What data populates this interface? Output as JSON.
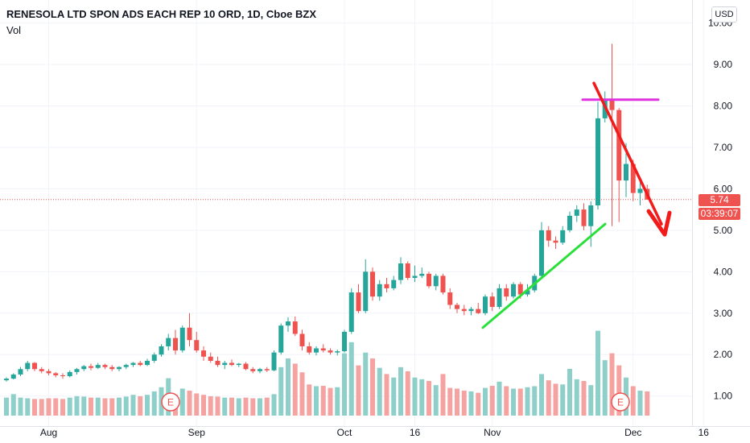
{
  "header": {
    "title": "RENESOLA LTD SPON ADS EACH REP 10 ORD, 1D, Cboe BZX",
    "volume_label": "Vol",
    "currency": "USD"
  },
  "price_tags": {
    "last_price": "5.74",
    "countdown": "03:39:07",
    "color": "#ef5350"
  },
  "chart_data": {
    "type": "candlestick",
    "y_ticks": [
      "1.00",
      "2.00",
      "3.00",
      "4.00",
      "5.00",
      "6.00",
      "7.00",
      "8.00",
      "9.00",
      "10.00"
    ],
    "ylim": [
      0.45,
      10.05
    ],
    "x_ticks": [
      {
        "label": "Aug",
        "index": 6
      },
      {
        "label": "Sep",
        "index": 27
      },
      {
        "label": "Oct",
        "index": 48
      },
      {
        "label": "16",
        "index": 58
      },
      {
        "label": "Nov",
        "index": 69
      },
      {
        "label": "Dec",
        "index": 89
      },
      {
        "label": "16",
        "index": 99
      }
    ],
    "colors": {
      "up": "#26a69a",
      "down": "#ef5350",
      "vol_up": "#8fcfc9",
      "vol_down": "#f5a3a1"
    },
    "candles": [
      [
        1.38,
        1.45,
        1.35,
        1.42
      ],
      [
        1.42,
        1.55,
        1.4,
        1.52
      ],
      [
        1.52,
        1.7,
        1.48,
        1.65
      ],
      [
        1.65,
        1.85,
        1.6,
        1.8
      ],
      [
        1.8,
        1.82,
        1.6,
        1.65
      ],
      [
        1.65,
        1.7,
        1.55,
        1.6
      ],
      [
        1.6,
        1.65,
        1.5,
        1.55
      ],
      [
        1.55,
        1.58,
        1.45,
        1.5
      ],
      [
        1.5,
        1.55,
        1.42,
        1.48
      ],
      [
        1.48,
        1.62,
        1.45,
        1.58
      ],
      [
        1.58,
        1.68,
        1.52,
        1.65
      ],
      [
        1.65,
        1.75,
        1.6,
        1.72
      ],
      [
        1.72,
        1.78,
        1.62,
        1.68
      ],
      [
        1.68,
        1.8,
        1.65,
        1.75
      ],
      [
        1.75,
        1.78,
        1.65,
        1.7
      ],
      [
        1.7,
        1.75,
        1.6,
        1.65
      ],
      [
        1.65,
        1.72,
        1.6,
        1.7
      ],
      [
        1.7,
        1.78,
        1.65,
        1.75
      ],
      [
        1.75,
        1.82,
        1.7,
        1.8
      ],
      [
        1.8,
        1.85,
        1.72,
        1.75
      ],
      [
        1.75,
        1.9,
        1.72,
        1.85
      ],
      [
        1.85,
        2.05,
        1.8,
        2.0
      ],
      [
        2.0,
        2.25,
        1.95,
        2.2
      ],
      [
        2.2,
        2.5,
        2.1,
        2.4
      ],
      [
        2.4,
        2.6,
        2.0,
        2.1
      ],
      [
        2.1,
        2.7,
        2.05,
        2.65
      ],
      [
        2.65,
        3.0,
        2.2,
        2.35
      ],
      [
        2.35,
        2.55,
        2.05,
        2.1
      ],
      [
        2.1,
        2.2,
        1.85,
        1.95
      ],
      [
        1.95,
        2.05,
        1.8,
        1.85
      ],
      [
        1.85,
        1.95,
        1.7,
        1.75
      ],
      [
        1.75,
        1.85,
        1.65,
        1.8
      ],
      [
        1.8,
        1.88,
        1.72,
        1.75
      ],
      [
        1.75,
        1.8,
        1.7,
        1.78
      ],
      [
        1.78,
        1.82,
        1.62,
        1.65
      ],
      [
        1.65,
        1.7,
        1.55,
        1.6
      ],
      [
        1.6,
        1.68,
        1.55,
        1.65
      ],
      [
        1.65,
        1.7,
        1.58,
        1.62
      ],
      [
        1.62,
        2.1,
        1.6,
        2.05
      ],
      [
        2.05,
        2.75,
        2.0,
        2.7
      ],
      [
        2.7,
        2.9,
        2.55,
        2.8
      ],
      [
        2.8,
        2.92,
        2.45,
        2.5
      ],
      [
        2.5,
        2.6,
        2.1,
        2.2
      ],
      [
        2.2,
        2.3,
        2.0,
        2.05
      ],
      [
        2.05,
        2.2,
        1.98,
        2.15
      ],
      [
        2.15,
        2.25,
        2.05,
        2.1
      ],
      [
        2.1,
        2.15,
        2.0,
        2.05
      ],
      [
        2.05,
        2.12,
        1.98,
        2.08
      ],
      [
        2.08,
        2.6,
        2.05,
        2.55
      ],
      [
        2.55,
        3.6,
        2.5,
        3.5
      ],
      [
        3.5,
        3.7,
        3.0,
        3.05
      ],
      [
        3.05,
        4.3,
        3.0,
        4.0
      ],
      [
        4.0,
        4.1,
        3.3,
        3.4
      ],
      [
        3.4,
        3.8,
        3.3,
        3.7
      ],
      [
        3.7,
        3.85,
        3.5,
        3.6
      ],
      [
        3.6,
        3.9,
        3.55,
        3.8
      ],
      [
        3.8,
        4.35,
        3.7,
        4.2
      ],
      [
        4.2,
        4.25,
        3.8,
        3.85
      ],
      [
        3.85,
        4.15,
        3.75,
        3.9
      ],
      [
        3.9,
        4.1,
        3.85,
        3.95
      ],
      [
        3.95,
        4.0,
        3.6,
        3.65
      ],
      [
        3.65,
        3.95,
        3.55,
        3.9
      ],
      [
        3.9,
        3.95,
        3.45,
        3.5
      ],
      [
        3.5,
        3.6,
        3.1,
        3.2
      ],
      [
        3.2,
        3.25,
        3.0,
        3.1
      ],
      [
        3.1,
        3.2,
        2.95,
        3.05
      ],
      [
        3.05,
        3.15,
        2.95,
        3.1
      ],
      [
        3.1,
        3.25,
        2.98,
        3.0
      ],
      [
        3.0,
        3.45,
        2.95,
        3.4
      ],
      [
        3.4,
        3.5,
        3.05,
        3.15
      ],
      [
        3.15,
        3.7,
        3.1,
        3.6
      ],
      [
        3.6,
        3.7,
        3.3,
        3.4
      ],
      [
        3.4,
        3.75,
        3.35,
        3.7
      ],
      [
        3.7,
        3.75,
        3.35,
        3.45
      ],
      [
        3.45,
        3.7,
        3.4,
        3.55
      ],
      [
        3.55,
        3.95,
        3.5,
        3.9
      ],
      [
        3.9,
        5.2,
        3.85,
        5.0
      ],
      [
        5.0,
        5.1,
        4.6,
        4.75
      ],
      [
        4.75,
        4.85,
        4.55,
        4.7
      ],
      [
        4.7,
        5.1,
        4.65,
        5.0
      ],
      [
        5.0,
        5.45,
        4.95,
        5.35
      ],
      [
        5.35,
        5.6,
        5.2,
        5.5
      ],
      [
        5.5,
        5.65,
        5.0,
        5.1
      ],
      [
        5.1,
        5.7,
        4.6,
        5.6
      ],
      [
        5.6,
        8.1,
        5.5,
        7.7
      ],
      [
        7.7,
        8.35,
        7.6,
        8.15
      ],
      [
        8.15,
        9.5,
        5.1,
        7.9
      ],
      [
        7.9,
        7.95,
        5.2,
        6.2
      ],
      [
        6.2,
        7.1,
        5.8,
        6.6
      ],
      [
        6.6,
        6.7,
        5.7,
        5.9
      ],
      [
        5.9,
        6.2,
        5.6,
        6.0
      ],
      [
        6.0,
        6.1,
        5.75,
        5.74
      ]
    ],
    "volumes": [
      0.52,
      0.62,
      0.52,
      0.5,
      0.48,
      0.48,
      0.5,
      0.5,
      0.48,
      0.52,
      0.56,
      0.55,
      0.52,
      0.52,
      0.5,
      0.5,
      0.52,
      0.55,
      0.6,
      0.56,
      0.6,
      0.7,
      0.82,
      1.08,
      0.6,
      0.78,
      0.72,
      0.64,
      0.6,
      0.56,
      0.55,
      0.52,
      0.52,
      0.5,
      0.52,
      0.5,
      0.5,
      0.52,
      0.62,
      1.4,
      1.65,
      1.5,
      1.25,
      0.9,
      0.85,
      0.86,
      0.8,
      0.82,
      1.8,
      2.12,
      1.45,
      1.82,
      1.65,
      1.38,
      1.2,
      1.1,
      1.4,
      1.28,
      1.1,
      1.05,
      1.0,
      0.88,
      1.2,
      0.8,
      0.78,
      0.72,
      0.7,
      0.66,
      0.8,
      0.86,
      0.98,
      0.85,
      0.78,
      0.78,
      0.82,
      0.85,
      1.2,
      1.02,
      0.92,
      0.9,
      1.35,
      1.05,
      1.0,
      0.88,
      2.45,
      1.6,
      1.8,
      1.45,
      1.1,
      0.85,
      0.72,
      0.7
    ]
  },
  "drawings": {
    "support_line_color": "#29e03a",
    "resistance_line_color": "#e030e0",
    "arrow_color": "#f21b1b"
  },
  "earnings_marker": {
    "label": "E",
    "color": "#ef5350"
  }
}
